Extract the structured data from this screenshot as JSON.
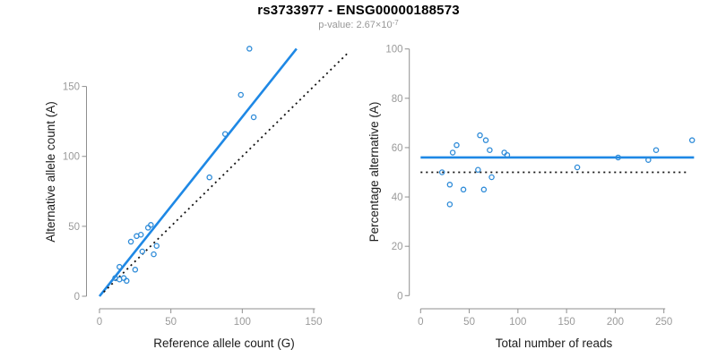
{
  "header": {
    "title": "rs3733977 - ENSG00000188573",
    "subtitle_prefix": "p-value: 2.67×10",
    "subtitle_exponent": "-7"
  },
  "colors": {
    "line_blue": "#1E88E5",
    "point_blue": "#2E8BD8",
    "dotted_black": "#111111",
    "axis_gray": "#8f8f8f",
    "tick_text_gray": "#9a9a9a"
  },
  "chart_data": [
    {
      "type": "scatter",
      "xlabel": "Reference allele count (G)",
      "ylabel": "Alternative allele count (A)",
      "xticks": [
        0,
        50,
        100,
        150
      ],
      "yticks": [
        0,
        50,
        100,
        150
      ],
      "xlim": [
        0,
        175
      ],
      "ylim": [
        0,
        180
      ],
      "grid": false,
      "legend": "none",
      "point_color": "#2E8BD8",
      "points": [
        [
          105,
          177
        ],
        [
          99,
          144
        ],
        [
          108,
          128
        ],
        [
          88,
          116
        ],
        [
          77,
          85
        ],
        [
          36,
          51
        ],
        [
          34,
          49
        ],
        [
          29,
          44
        ],
        [
          26,
          43
        ],
        [
          22,
          39
        ],
        [
          40,
          36
        ],
        [
          30,
          32
        ],
        [
          38,
          30
        ],
        [
          14,
          21
        ],
        [
          25,
          19
        ],
        [
          11,
          13
        ],
        [
          14,
          12
        ],
        [
          17,
          13
        ],
        [
          19,
          11
        ]
      ],
      "lines": [
        {
          "name": "regression-line",
          "type": "solid",
          "color": "#1E88E5",
          "width": 2.6,
          "from": [
            0,
            0
          ],
          "to": [
            138,
            177
          ]
        },
        {
          "name": "identity-line",
          "type": "dotted",
          "color": "#111111",
          "width": 1.8,
          "from": [
            3,
            3
          ],
          "to": [
            175,
            175
          ]
        }
      ]
    },
    {
      "type": "scatter",
      "xlabel": "Total number of reads",
      "ylabel": "Percentage alternative (A)",
      "xticks": [
        0,
        50,
        100,
        150,
        200,
        250
      ],
      "yticks": [
        0,
        20,
        40,
        60,
        80,
        100
      ],
      "xlim": [
        0,
        285
      ],
      "ylim": [
        0,
        100
      ],
      "grid": false,
      "legend": "none",
      "point_color": "#2E8BD8",
      "points": [
        [
          22,
          50
        ],
        [
          30,
          45
        ],
        [
          30,
          37
        ],
        [
          33,
          58
        ],
        [
          37,
          61
        ],
        [
          44,
          43
        ],
        [
          59,
          51
        ],
        [
          61,
          65
        ],
        [
          65,
          43
        ],
        [
          67,
          63
        ],
        [
          71,
          59
        ],
        [
          73,
          48
        ],
        [
          86,
          58
        ],
        [
          89,
          57
        ],
        [
          161,
          52
        ],
        [
          203,
          56
        ],
        [
          234,
          55
        ],
        [
          242,
          59
        ],
        [
          279,
          63
        ]
      ],
      "lines": [
        {
          "name": "mean-line",
          "type": "solid",
          "color": "#1E88E5",
          "width": 2.6,
          "from": [
            0,
            56
          ],
          "to": [
            281,
            56
          ]
        },
        {
          "name": "reference-line",
          "type": "dotted",
          "color": "#111111",
          "width": 1.8,
          "from": [
            0,
            50
          ],
          "to": [
            275,
            50
          ]
        }
      ]
    }
  ]
}
